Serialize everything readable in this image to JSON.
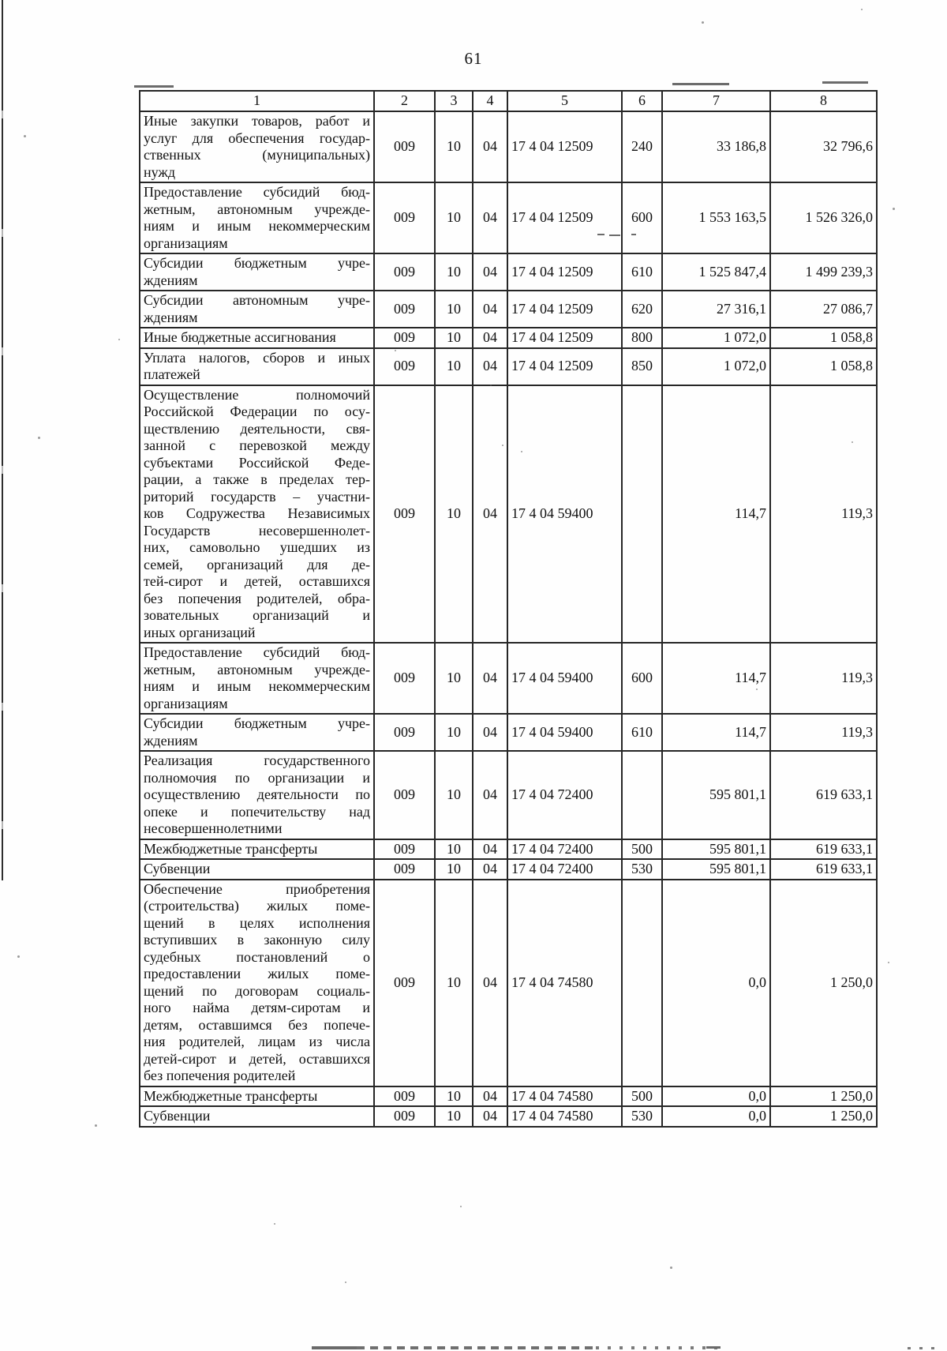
{
  "page_number": "61",
  "colors": {
    "text": "#101010",
    "table_border": "#262626",
    "background": "#ffffff"
  },
  "table": {
    "header": [
      "1",
      "2",
      "3",
      "4",
      "5",
      "6",
      "7",
      "8"
    ],
    "rows": [
      {
        "name_lines": [
          "Иные закупки товаров, работ и",
          "услуг для обеспечения государ-",
          "ственных (муниципальных)",
          "нужд"
        ],
        "cells": [
          "009",
          "10",
          "04",
          "17 4 04 12509",
          "240",
          "33 186,8",
          "32 796,6"
        ]
      },
      {
        "name_lines": [
          "Предоставление субсидий бюд-",
          "жетным, автономным учрежде-",
          "ниям и иным некоммерческим",
          "организациям"
        ],
        "cells": [
          "009",
          "10",
          "04",
          "17 4 04 12509",
          "600",
          "1 553 163,5",
          "1 526 326,0"
        ]
      },
      {
        "name_lines": [
          "Субсидии бюджетным учре-",
          "ждениям"
        ],
        "cells": [
          "009",
          "10",
          "04",
          "17 4 04 12509",
          "610",
          "1 525 847,4",
          "1 499 239,3"
        ]
      },
      {
        "name_lines": [
          "Субсидии автономным учре-",
          "ждениям"
        ],
        "cells": [
          "009",
          "10",
          "04",
          "17 4 04 12509",
          "620",
          "27 316,1",
          "27 086,7"
        ]
      },
      {
        "name_lines": [
          "Иные бюджетные ассигнования"
        ],
        "cells": [
          "009",
          "10",
          "04",
          "17 4 04 12509",
          "800",
          "1 072,0",
          "1 058,8"
        ]
      },
      {
        "name_lines": [
          "Уплата налогов, сборов и иных",
          "платежей"
        ],
        "cells": [
          "009",
          "10",
          "04",
          "17 4 04 12509",
          "850",
          "1 072,0",
          "1 058,8"
        ]
      },
      {
        "name_lines": [
          "Осуществление полномочий",
          "Российской Федерации по осу-",
          "ществлению деятельности, свя-",
          "занной с перевозкой между",
          "субъектами Российской Феде-",
          "рации, а также в пределах тер-",
          "риторий государств – участни-",
          "ков Содружества Независимых",
          "Государств несовершеннолет-",
          "них, самовольно ушедших из",
          "семей, организаций для де-",
          "тей-сирот и детей, оставшихся",
          "без попечения родителей, обра-",
          "зовательных организаций и",
          "иных организаций"
        ],
        "cells": [
          "009",
          "10",
          "04",
          "17 4 04 59400",
          "",
          "114,7",
          "119,3"
        ]
      },
      {
        "name_lines": [
          "Предоставление субсидий бюд-",
          "жетным, автономным учрежде-",
          "ниям и иным некоммерческим",
          "организациям"
        ],
        "cells": [
          "009",
          "10",
          "04",
          "17 4 04 59400",
          "600",
          "114,7",
          "119,3"
        ]
      },
      {
        "name_lines": [
          "Субсидии бюджетным учре-",
          "ждениям"
        ],
        "cells": [
          "009",
          "10",
          "04",
          "17 4 04 59400",
          "610",
          "114,7",
          "119,3"
        ]
      },
      {
        "name_lines": [
          "Реализация государственного",
          "полномочия по организации и",
          "осуществлению деятельности по",
          "опеке и попечительству над",
          "несовершеннолетними"
        ],
        "cells": [
          "009",
          "10",
          "04",
          "17 4 04 72400",
          "",
          "595 801,1",
          "619 633,1"
        ]
      },
      {
        "name_lines": [
          "Межбюджетные трансферты"
        ],
        "cells": [
          "009",
          "10",
          "04",
          "17 4 04 72400",
          "500",
          "595 801,1",
          "619 633,1"
        ]
      },
      {
        "name_lines": [
          "Субвенции"
        ],
        "cells": [
          "009",
          "10",
          "04",
          "17 4 04 72400",
          "530",
          "595 801,1",
          "619 633,1"
        ]
      },
      {
        "name_lines": [
          "Обеспечение приобретения",
          "(строительства) жилых поме-",
          "щений в целях исполнения",
          "вступивших в законную силу",
          "судебных постановлений о",
          "предоставлении жилых поме-",
          "щений по договорам социаль-",
          "ного найма детям-сиротам и",
          "детям, оставшимся без попече-",
          "ния родителей, лицам из числа",
          "детей-сирот и детей, оставшихся",
          "без попечения родителей"
        ],
        "cells": [
          "009",
          "10",
          "04",
          "17 4 04 74580",
          "",
          "0,0",
          "1 250,0"
        ]
      },
      {
        "name_lines": [
          "Межбюджетные трансферты"
        ],
        "cells": [
          "009",
          "10",
          "04",
          "17 4 04 74580",
          "500",
          "0,0",
          "1 250,0"
        ]
      },
      {
        "name_lines": [
          "Субвенции"
        ],
        "cells": [
          "009",
          "10",
          "04",
          "17 4 04 74580",
          "530",
          "0,0",
          "1 250,0"
        ]
      }
    ]
  }
}
